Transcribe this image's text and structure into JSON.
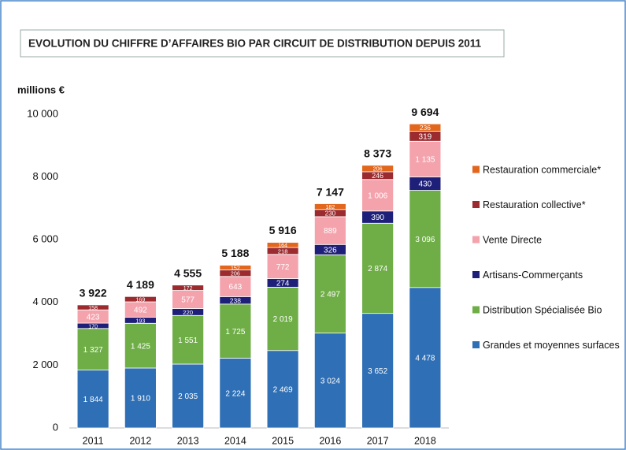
{
  "chart_data": {
    "type": "stacked_bar",
    "title": "EVOLUTION DU CHIFFRE D’AFFAIRES BIO PAR CIRCUIT DE DISTRIBUTION DEPUIS 2011",
    "y_label": "millions €",
    "categories": [
      "2011",
      "2012",
      "2013",
      "2014",
      "2015",
      "2016",
      "2017",
      "2018"
    ],
    "series": [
      {
        "name": "Grandes et moyennes surfaces",
        "color": "#2e6fb5",
        "values": [
          1844,
          1910,
          2035,
          2224,
          2469,
          3024,
          3652,
          4478
        ],
        "value_labels": [
          "1 844",
          "1 910",
          "2 035",
          "2 224",
          "2 469",
          "3 024",
          "3 652",
          "4 478"
        ]
      },
      {
        "name": "Distribution Spécialisée Bio",
        "color": "#6fae47",
        "values": [
          1327,
          1425,
          1551,
          1725,
          2019,
          2497,
          2874,
          3096
        ],
        "value_labels": [
          "1 327",
          "1 425",
          "1 551",
          "1 725",
          "2 019",
          "2 497",
          "2 874",
          "3 096"
        ]
      },
      {
        "name": "Artisans-Commerçants",
        "color": "#1e1f78",
        "values": [
          170,
          193,
          220,
          238,
          274,
          326,
          390,
          430
        ]
      },
      {
        "name": "Vente Directe",
        "color": "#f4a3ad",
        "values": [
          423,
          492,
          577,
          643,
          772,
          889,
          1006,
          1135
        ],
        "value_labels": [
          "423",
          "492",
          "577",
          "643",
          "772",
          "889",
          "1 006",
          "1 135"
        ]
      },
      {
        "name": "Restauration collective*",
        "color": "#9c2b2f",
        "values": [
          158,
          169,
          172,
          206,
          218,
          230,
          246,
          319
        ]
      },
      {
        "name": "Restauration commerciale*",
        "color": "#e2661c",
        "values": [
          null,
          null,
          null,
          152,
          164,
          182,
          206,
          236
        ]
      }
    ],
    "totals": [
      3922,
      4189,
      4555,
      5188,
      5916,
      7147,
      8373,
      9694
    ],
    "total_labels": [
      "3 922",
      "4 189",
      "4 555",
      "5 188",
      "5 916",
      "7 147",
      "8 373",
      "9 694"
    ],
    "ylim": [
      0,
      10000
    ],
    "yticks": [
      0,
      {
        "value": 2000,
        "label": "2 000"
      },
      {
        "value": 4000,
        "label": "4 000"
      },
      {
        "value": 6000,
        "label": "6 000"
      },
      {
        "value": 8000,
        "label": "8 000"
      },
      {
        "value": 10000,
        "label": "10 000"
      }
    ],
    "legend": "right"
  }
}
